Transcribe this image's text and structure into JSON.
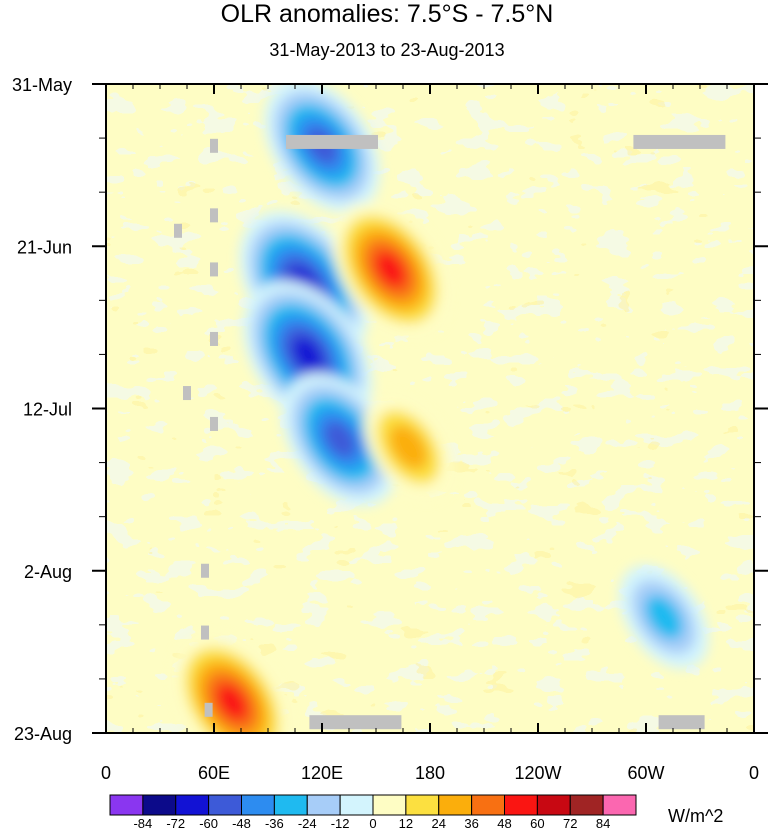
{
  "chart_data": {
    "type": "heatmap",
    "title": "OLR anomalies: 7.5°S - 7.5°N",
    "subtitle": "31-May-2013 to 23-Aug-2013",
    "x_ticks": [
      "0",
      "60E",
      "120E",
      "180",
      "120W",
      "60W",
      "0"
    ],
    "x_range_deg_east": [
      0,
      360
    ],
    "y_ticks": [
      "31-May",
      "21-Jun",
      "12-Jul",
      "2-Aug",
      "23-Aug"
    ],
    "y_range_days": [
      0,
      84
    ],
    "units": "W/m^2",
    "levels": [
      -84,
      -72,
      -60,
      -48,
      -36,
      -24,
      -12,
      0,
      12,
      24,
      36,
      48,
      60,
      72,
      84
    ],
    "colors": [
      "#8a36f0",
      "#0c0a8a",
      "#1212d4",
      "#3d5ad8",
      "#2d8cf0",
      "#1fbaf0",
      "#a7cdf8",
      "#d3f4fd",
      "#fefdc4",
      "#fce040",
      "#fbae0c",
      "#f87012",
      "#fa1512",
      "#c80812",
      "#a02424",
      "#fb67b0"
    ],
    "colorbar_labels": [
      "-84",
      "-72",
      "-60",
      "-48",
      "-36",
      "-24",
      "-12",
      "0",
      "12",
      "24",
      "36",
      "48",
      "60",
      "72",
      "84"
    ],
    "features": [
      {
        "type": "negative",
        "lon": 120,
        "day": 8,
        "value": -65
      },
      {
        "type": "negative",
        "lon": 110,
        "day": 26,
        "value": -70
      },
      {
        "type": "negative",
        "lon": 112,
        "day": 35,
        "value": -75
      },
      {
        "type": "negative",
        "lon": 130,
        "day": 46,
        "value": -60
      },
      {
        "type": "positive",
        "lon": 158,
        "day": 24,
        "value": 55
      },
      {
        "type": "positive",
        "lon": 168,
        "day": 47,
        "value": 40
      },
      {
        "type": "positive",
        "lon": 70,
        "day": 80,
        "value": 60
      },
      {
        "type": "negative",
        "lon": 310,
        "day": 69,
        "value": -40
      }
    ]
  }
}
